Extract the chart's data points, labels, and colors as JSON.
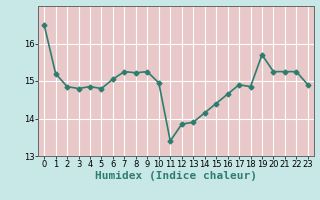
{
  "x": [
    0,
    1,
    2,
    3,
    4,
    5,
    6,
    7,
    8,
    9,
    10,
    11,
    12,
    13,
    14,
    15,
    16,
    17,
    18,
    19,
    20,
    21,
    22,
    23
  ],
  "y": [
    16.5,
    15.2,
    14.85,
    14.8,
    14.85,
    14.8,
    15.05,
    15.25,
    15.22,
    15.25,
    14.95,
    13.4,
    13.85,
    13.9,
    14.15,
    14.4,
    14.65,
    14.9,
    14.85,
    15.7,
    15.25,
    15.25,
    15.25,
    14.9
  ],
  "line_color": "#2e7d6e",
  "marker": "D",
  "marker_size": 2.5,
  "outer_bg_color": "#c8e8e8",
  "plot_bg_color": "#e8c8c8",
  "grid_color": "#ffffff",
  "xlabel": "Humidex (Indice chaleur)",
  "xlabel_fontsize": 8,
  "ylabel": "",
  "ylim": [
    13,
    17
  ],
  "xlim": [
    -0.5,
    23.5
  ],
  "yticks": [
    13,
    14,
    15,
    16
  ],
  "xticks": [
    0,
    1,
    2,
    3,
    4,
    5,
    6,
    7,
    8,
    9,
    10,
    11,
    12,
    13,
    14,
    15,
    16,
    17,
    18,
    19,
    20,
    21,
    22,
    23
  ],
  "tick_fontsize": 6,
  "linewidth": 1.2
}
